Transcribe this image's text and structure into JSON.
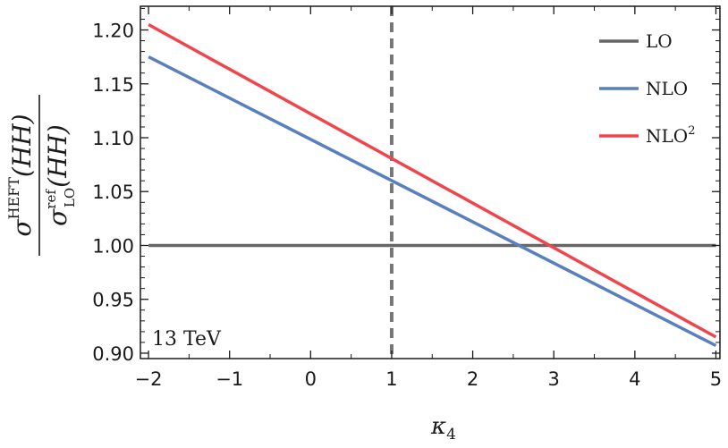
{
  "chart_data": {
    "type": "line",
    "xlabel": "κ4",
    "ylabel": "σHEFT(HH) / σrefLO(HH)",
    "ylabel_parts": {
      "num_sigma": "σ",
      "num_sup": "HEFT",
      "num_arg": "(HH)",
      "den_sigma": "σ",
      "den_sup": "ref",
      "den_sub": "LO",
      "den_arg": "(HH)"
    },
    "xlabel_parts": {
      "symbol": "κ",
      "sub": "4"
    },
    "xlim": [
      -2.1,
      5.05
    ],
    "ylim": [
      0.895,
      1.222
    ],
    "x_ticks": [
      -2,
      -1,
      0,
      1,
      2,
      3,
      4,
      5
    ],
    "x_tick_labels": [
      "−2",
      "−1",
      "0",
      "1",
      "2",
      "3",
      "4",
      "5"
    ],
    "y_ticks": [
      0.9,
      0.95,
      1.0,
      1.05,
      1.1,
      1.15,
      1.2
    ],
    "y_tick_labels": [
      "0.90",
      "0.95",
      "1.00",
      "1.05",
      "1.10",
      "1.15",
      "1.20"
    ],
    "grid": false,
    "legend_position": "top-right",
    "reference_line": {
      "x": 1,
      "style": "dashed",
      "color": "#777777"
    },
    "series": [
      {
        "name": "LO",
        "x": [
          -2,
          5
        ],
        "y": [
          1.0,
          1.0
        ],
        "color": "#666666"
      },
      {
        "name": "NLO",
        "x": [
          -2,
          5
        ],
        "y": [
          1.175,
          0.907
        ],
        "color": "#5a7fbf"
      },
      {
        "name": "NLO2",
        "legend_base": "NLO",
        "legend_sup": "2",
        "x": [
          -2,
          5
        ],
        "y": [
          1.205,
          0.915
        ],
        "color": "#f0454c"
      }
    ],
    "annotation": "13 TeV"
  }
}
